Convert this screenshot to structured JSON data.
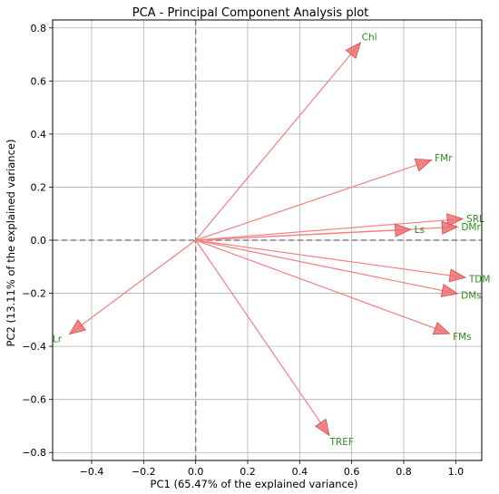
{
  "chart_data": {
    "type": "scatter",
    "subtype": "pca-biplot-loadings",
    "title": "PCA - Principal Component Analysis plot",
    "xlabel": "PC1 (65.47% of the explained variance)",
    "ylabel": "PC2 (13.11% of the explained variance)",
    "xlim": [
      -0.55,
      1.1
    ],
    "ylim": [
      -0.83,
      0.83
    ],
    "xticks": [
      -0.4,
      -0.2,
      0.0,
      0.2,
      0.4,
      0.6,
      0.8,
      1.0
    ],
    "xtick_labels": [
      "−0.4",
      "−0.2",
      "0.0",
      "0.2",
      "0.4",
      "0.6",
      "0.8",
      "1.0"
    ],
    "yticks": [
      -0.8,
      -0.6,
      -0.4,
      -0.2,
      0.0,
      0.2,
      0.4,
      0.6,
      0.8
    ],
    "ytick_labels": [
      "−0.8",
      "−0.6",
      "−0.4",
      "−0.2",
      "0.0",
      "0.2",
      "0.4",
      "0.6",
      "0.8"
    ],
    "grid": true,
    "zero_lines": "dashed",
    "arrow_color": "#f28080",
    "arrow_head_color": "#f07070",
    "label_color": "#2e8b1e",
    "vectors": [
      {
        "name": "Chl",
        "x": 0.63,
        "y": 0.74
      },
      {
        "name": "FMr",
        "x": 0.9,
        "y": 0.3
      },
      {
        "name": "SRL",
        "x": 1.02,
        "y": 0.08
      },
      {
        "name": "DMr",
        "x": 1.0,
        "y": 0.05
      },
      {
        "name": "Ls",
        "x": 0.82,
        "y": 0.04
      },
      {
        "name": "TDM",
        "x": 1.03,
        "y": -0.14
      },
      {
        "name": "DMs",
        "x": 1.0,
        "y": -0.2
      },
      {
        "name": "FMs",
        "x": 0.97,
        "y": -0.35
      },
      {
        "name": "Lr",
        "x": -0.48,
        "y": -0.35
      },
      {
        "name": "TREF",
        "x": 0.51,
        "y": -0.73
      }
    ]
  }
}
